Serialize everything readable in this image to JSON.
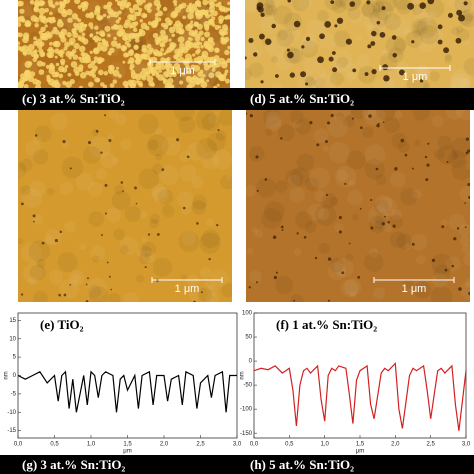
{
  "images": [
    {
      "scale_bar": "1 μm"
    },
    {
      "scale_bar": "1 μm"
    },
    {
      "label": "(c) 3 at.% Sn:TiO₂",
      "scale_bar": "1 μm"
    },
    {
      "label": "(d) 5 at.% Sn:TiO₂",
      "scale_bar": "1 μm"
    }
  ],
  "chart_data": [
    {
      "type": "line",
      "title": "(e) TiO₂",
      "xlabel": "μm",
      "ylabel": "nm",
      "color": "#000000",
      "x": [
        0,
        0.1,
        0.2,
        0.3,
        0.4,
        0.5,
        0.55,
        0.6,
        0.65,
        0.7,
        0.75,
        0.8,
        0.9,
        0.95,
        1.0,
        1.05,
        1.1,
        1.15,
        1.2,
        1.3,
        1.35,
        1.4,
        1.45,
        1.5,
        1.6,
        1.65,
        1.7,
        1.8,
        1.85,
        1.9,
        2.0,
        2.05,
        2.1,
        2.2,
        2.25,
        2.3,
        2.4,
        2.45,
        2.5,
        2.6,
        2.65,
        2.7,
        2.8,
        2.85,
        2.9,
        3.0
      ],
      "values": [
        0,
        -1,
        0,
        1,
        -2,
        0,
        -7,
        0,
        1,
        -9,
        -1,
        -10,
        0,
        -8,
        1,
        0,
        -6,
        0,
        1,
        0,
        -10,
        -1,
        0,
        -4,
        0,
        -9,
        0,
        1,
        -8,
        0,
        0,
        -7,
        -1,
        0,
        -8,
        1,
        0,
        -9,
        -2,
        0,
        -6,
        0,
        1,
        -10,
        0,
        0
      ],
      "xlim": [
        0,
        3
      ],
      "ylim": [
        -17,
        17
      ],
      "xticks": [
        {
          "value": 0,
          "label": "0,0"
        },
        {
          "value": 0.5,
          "label": "0,5"
        },
        {
          "value": 1,
          "label": "1,0"
        },
        {
          "value": 1.5,
          "label": "1,5"
        },
        {
          "value": 2,
          "label": "2,0"
        },
        {
          "value": 2.5,
          "label": "2,5"
        },
        {
          "value": 3,
          "label": "3,0"
        }
      ],
      "yticks": [
        -15,
        -10,
        -5,
        0,
        5,
        10,
        15
      ]
    },
    {
      "type": "line",
      "title": "(f) 1 at.% Sn:TiO₂",
      "xlabel": "μm",
      "ylabel": "nm",
      "color": "#d42020",
      "x": [
        0,
        0.1,
        0.2,
        0.3,
        0.4,
        0.5,
        0.55,
        0.6,
        0.65,
        0.7,
        0.75,
        0.8,
        0.9,
        0.95,
        1.0,
        1.05,
        1.1,
        1.15,
        1.2,
        1.3,
        1.35,
        1.4,
        1.45,
        1.5,
        1.6,
        1.65,
        1.7,
        1.8,
        1.85,
        1.9,
        2.0,
        2.05,
        2.1,
        2.2,
        2.25,
        2.3,
        2.4,
        2.45,
        2.5,
        2.6,
        2.65,
        2.7,
        2.8,
        2.85,
        2.9,
        3.0
      ],
      "values": [
        -20,
        -15,
        -18,
        -10,
        -25,
        -15,
        -60,
        -135,
        -50,
        -20,
        -15,
        -25,
        -10,
        -80,
        -125,
        -30,
        -15,
        -20,
        -10,
        -15,
        -70,
        -130,
        -40,
        -20,
        -10,
        -90,
        -120,
        -25,
        -15,
        -20,
        -5,
        -100,
        -140,
        -30,
        -15,
        -20,
        -10,
        -60,
        -120,
        -20,
        -15,
        -25,
        -10,
        -90,
        -145,
        -20
      ],
      "xlim": [
        0,
        3
      ],
      "ylim": [
        -160,
        100
      ],
      "xticks": [
        {
          "value": 0,
          "label": "0,0"
        },
        {
          "value": 0.5,
          "label": "0,5"
        },
        {
          "value": 1,
          "label": "1,0"
        },
        {
          "value": 1.5,
          "label": "1,5"
        },
        {
          "value": 2,
          "label": "2,0"
        },
        {
          "value": 2.5,
          "label": "2,5"
        },
        {
          "value": 3,
          "label": "3,0"
        }
      ],
      "yticks": [
        -150,
        -100,
        -50,
        0,
        50,
        100
      ]
    }
  ],
  "bottom_labels": [
    "(g) 3 at.% Sn:TiO₂",
    "(h) 5 at.% Sn:TiO₂"
  ]
}
